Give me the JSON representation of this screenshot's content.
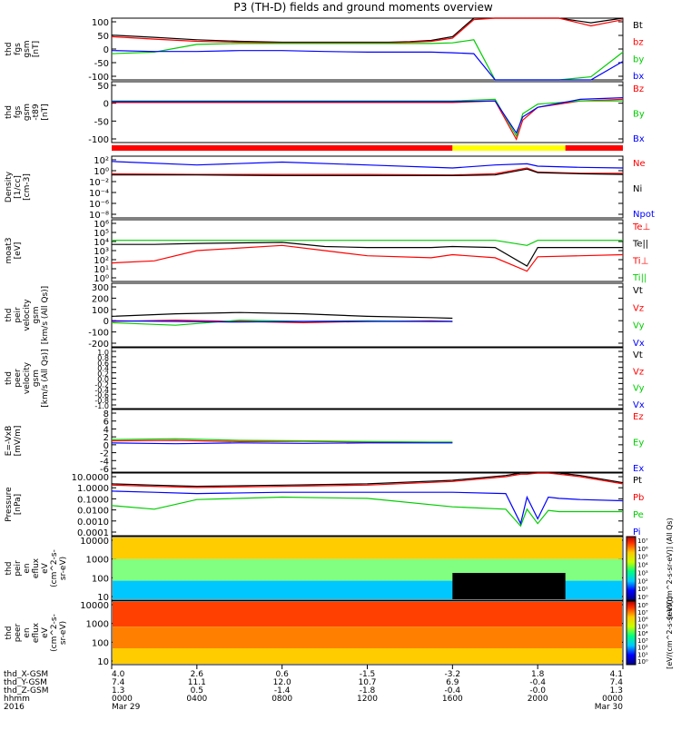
{
  "title": "P3 (TH-D) fields and ground moments overview",
  "colors": {
    "black": "#000000",
    "red": "#ff0000",
    "green": "#00cc00",
    "blue": "#0000ff",
    "yellow": "#ffff00"
  },
  "panels": [
    {
      "id": "fgs",
      "ylabel": [
        "thd",
        "fgs",
        "gsm",
        "[nT]"
      ],
      "yticks": [
        "100",
        "50",
        "0",
        "-50",
        "-100"
      ],
      "legend": [
        {
          "text": "Bt",
          "color": "#000000"
        },
        {
          "text": "bz",
          "color": "#ff0000"
        },
        {
          "text": "by",
          "color": "#00cc00"
        },
        {
          "text": "bx",
          "color": "#0000ff"
        }
      ]
    },
    {
      "id": "fgs_minus_t89",
      "ylabel": [
        "thd",
        "fgs",
        "gsm",
        "-t89",
        "[nT]"
      ],
      "yticks": [
        "50",
        "0",
        "-50",
        "-100"
      ],
      "legend": [
        {
          "text": "Bz",
          "color": "#ff0000"
        },
        {
          "text": "By",
          "color": "#00cc00"
        },
        {
          "text": "Bx",
          "color": "#0000ff"
        }
      ]
    },
    {
      "id": "density",
      "ylabel": [
        "Density",
        "[1/cc]",
        "[cm-3]"
      ],
      "yticks": [
        "10²",
        "10⁰",
        "10⁻²",
        "10⁻⁴",
        "10⁻⁶",
        "10⁻⁸"
      ],
      "legend": [
        {
          "text": "Ne",
          "color": "#ff0000"
        },
        {
          "text": "Ni",
          "color": "#000000"
        },
        {
          "text": "Npot",
          "color": "#0000ff"
        }
      ]
    },
    {
      "id": "temperature",
      "ylabel": [
        "moat3",
        "[eV]"
      ],
      "yticks": [
        "10⁶",
        "10⁵",
        "10⁴",
        "10³",
        "10²",
        "10¹",
        "10⁰"
      ],
      "legend": [
        {
          "text": "Te⊥",
          "color": "#ff0000"
        },
        {
          "text": "Te||",
          "color": "#000000"
        },
        {
          "text": "Ti⊥",
          "color": "#ff0000"
        },
        {
          "text": "Ti||",
          "color": "#00cc00"
        }
      ]
    },
    {
      "id": "peir_velocity",
      "ylabel": [
        "thd",
        "peir",
        "velocity",
        "gsm",
        "[km/s (All Qs)]"
      ],
      "yticks": [
        "300",
        "200",
        "100",
        "0",
        "-100",
        "-200"
      ],
      "legend": [
        {
          "text": "Vt",
          "color": "#000000"
        },
        {
          "text": "Vz",
          "color": "#ff0000"
        },
        {
          "text": "Vy",
          "color": "#00cc00"
        },
        {
          "text": "Vx",
          "color": "#0000ff"
        }
      ]
    },
    {
      "id": "peer_velocity",
      "ylabel": [
        "thd",
        "peer",
        "velocity",
        "gsm",
        "[km/s (All Qs)]"
      ],
      "yticks": [
        "1.0",
        "0.8",
        "0.6",
        "0.4",
        "0.2",
        "0.0",
        "-0.2",
        "-0.4",
        "-0.6",
        "-0.8",
        "-1.0"
      ],
      "legend": [
        {
          "text": "Vt",
          "color": "#000000"
        },
        {
          "text": "Vz",
          "color": "#ff0000"
        },
        {
          "text": "Vy",
          "color": "#00cc00"
        },
        {
          "text": "Vx",
          "color": "#0000ff"
        }
      ]
    },
    {
      "id": "efield",
      "ylabel": [
        "E=-VxB",
        "[mV/m]"
      ],
      "yticks": [
        "8",
        "6",
        "4",
        "2",
        "0",
        "-2",
        "-4",
        "-6"
      ],
      "legend": [
        {
          "text": "Ez",
          "color": "#ff0000"
        },
        {
          "text": "Ey",
          "color": "#00cc00"
        },
        {
          "text": "Ex",
          "color": "#0000ff"
        }
      ]
    },
    {
      "id": "pressure",
      "ylabel": [
        "Pressure",
        "[nPa]"
      ],
      "yticks": [
        "10.0000",
        "1.0000",
        "0.1000",
        "0.0100",
        "0.0010",
        "0.0001"
      ],
      "legend": [
        {
          "text": "Pt",
          "color": "#000000"
        },
        {
          "text": "Pb",
          "color": "#ff0000"
        },
        {
          "text": "Pe",
          "color": "#00cc00"
        },
        {
          "text": "Pi",
          "color": "#0000ff"
        }
      ]
    },
    {
      "id": "peir_spec",
      "ylabel": [
        "thd",
        "peir",
        "en",
        "eflux",
        "eV",
        "(cm^2-s-",
        "sr-eV)"
      ],
      "yticks": [
        "10000",
        "1000",
        "100",
        "10"
      ]
    },
    {
      "id": "peer_spec",
      "ylabel": [
        "thd",
        "peer",
        "en",
        "eflux",
        "eV",
        "(cm^2-s-",
        "sr-eV)"
      ],
      "yticks": [
        "10000",
        "1000",
        "100",
        "10"
      ]
    }
  ],
  "colorbars": [
    {
      "ticks": [
        "10⁷",
        "10⁶",
        "10⁵",
        "10⁴",
        "10³",
        "10²",
        "10¹",
        "10⁰"
      ],
      "label": "[eV/(cm^2-s-sr-eV)] (All Qs)"
    },
    {
      "ticks": [
        "10⁸",
        "10⁷",
        "10⁶",
        "10⁵",
        "10⁴",
        "10³",
        "10²",
        "10¹",
        "10⁰"
      ],
      "label": "[eV/(cm^2-s-sr-eV)]"
    }
  ],
  "bottom_axis": {
    "row_labels": [
      "thd_X-GSM",
      "thd_Y-GSM",
      "thd_Z-GSM",
      "hhmm",
      "2016"
    ],
    "columns": [
      [
        "4.0",
        "7.4",
        "1.3",
        "0000",
        "Mar 29"
      ],
      [
        "2.6",
        "11.1",
        "0.5",
        "0400",
        ""
      ],
      [
        "0.6",
        "12.0",
        "-1.4",
        "0800",
        ""
      ],
      [
        "-1.5",
        "10.7",
        "-1.8",
        "1200",
        ""
      ],
      [
        "-3.2",
        "6.9",
        "-0.4",
        "1600",
        ""
      ],
      [
        "1.8",
        "-0.4",
        "-0.0",
        "2000",
        ""
      ],
      [
        "4.1",
        "7.4",
        "1.3",
        "0000",
        "Mar 30"
      ]
    ]
  },
  "chart_data": [
    {
      "type": "line",
      "panel": "fgs",
      "x_hours": [
        0,
        2,
        4,
        6,
        8,
        10,
        12,
        13,
        14,
        15,
        16,
        17,
        18,
        18.5,
        21,
        22.5,
        24
      ],
      "series": [
        {
          "name": "Bt",
          "values": [
            45,
            38,
            30,
            25,
            22,
            22,
            22,
            22,
            24,
            28,
            40,
            100,
            100,
            100,
            100,
            85,
            100
          ]
        },
        {
          "name": "bz",
          "values": [
            40,
            32,
            25,
            22,
            20,
            20,
            20,
            20,
            22,
            25,
            35,
            95,
            100,
            100,
            100,
            75,
            95
          ]
        },
        {
          "name": "by",
          "values": [
            -15,
            -10,
            15,
            18,
            18,
            18,
            18,
            18,
            18,
            18,
            20,
            30,
            -100,
            -100,
            -100,
            -90,
            -10
          ]
        },
        {
          "name": "bx",
          "values": [
            -5,
            -8,
            -8,
            -5,
            -5,
            -8,
            -10,
            -10,
            -10,
            -10,
            -12,
            -15,
            -100,
            -100,
            -100,
            -100,
            -40
          ]
        }
      ],
      "ylim": [
        -100,
        100
      ]
    },
    {
      "type": "line",
      "panel": "fgs_minus_t89",
      "x_hours": [
        0,
        4,
        8,
        12,
        16,
        18,
        19,
        19.3,
        20,
        22,
        24
      ],
      "series": [
        {
          "name": "Bz",
          "values": [
            -5,
            -5,
            -5,
            -5,
            -5,
            0,
            -120,
            -60,
            -20,
            0,
            5
          ]
        },
        {
          "name": "By",
          "values": [
            0,
            0,
            0,
            0,
            0,
            5,
            -110,
            -40,
            -10,
            0,
            0
          ]
        },
        {
          "name": "Bx",
          "values": [
            -2,
            -2,
            -2,
            -2,
            -2,
            0,
            -100,
            -50,
            -20,
            5,
            10
          ]
        }
      ],
      "ylim": [
        -130,
        60
      ]
    },
    {
      "type": "line",
      "panel": "density",
      "x_hours": [
        0,
        4,
        8,
        12,
        16,
        18,
        19.5,
        20,
        22,
        24
      ],
      "series": [
        {
          "name": "Ne",
          "log10_values": [
            -0.5,
            -0.6,
            -0.6,
            -0.6,
            -0.7,
            -0.5,
            0.5,
            -0.2,
            -0.4,
            -0.4
          ]
        },
        {
          "name": "Ni",
          "log10_values": [
            -0.7,
            -0.7,
            -0.8,
            -0.8,
            -0.8,
            -0.7,
            0.3,
            -0.3,
            -0.5,
            -0.6
          ]
        },
        {
          "name": "Npot",
          "log10_values": [
            1.6,
            1.0,
            1.5,
            1.0,
            0.5,
            1.0,
            1.2,
            0.8,
            0.6,
            0.5
          ]
        }
      ],
      "ylog_range": [
        -8,
        2.5
      ]
    },
    {
      "type": "line",
      "panel": "temperature",
      "x_hours": [
        0,
        2,
        4,
        8,
        10,
        12,
        15,
        16,
        18,
        19.5,
        20,
        22,
        24
      ],
      "series": [
        {
          "name": "Te||",
          "log10_values": [
            3.6,
            3.6,
            3.7,
            3.8,
            3.4,
            3.3,
            3.3,
            3.4,
            3.3,
            1.5,
            3.3,
            3.3,
            3.3
          ]
        },
        {
          "name": "Ti||",
          "log10_values": [
            4.0,
            4.0,
            4.0,
            4.0,
            4.0,
            4.0,
            4.0,
            4.0,
            4.0,
            3.5,
            4.0,
            4.0,
            4.0
          ]
        },
        {
          "name": "Te⊥",
          "log10_values": [
            1.8,
            2.0,
            3.0,
            3.5,
            3.0,
            2.5,
            2.3,
            2.6,
            2.3,
            1.0,
            2.4,
            2.5,
            2.6
          ]
        }
      ],
      "ylog_range": [
        0,
        6
      ]
    },
    {
      "type": "line",
      "panel": "peir_velocity",
      "x_hours": [
        0,
        3,
        6,
        9,
        12,
        15,
        16
      ],
      "series": [
        {
          "name": "Vt",
          "values": [
            40,
            60,
            70,
            60,
            40,
            30,
            25
          ]
        },
        {
          "name": "Vz",
          "values": [
            0,
            10,
            0,
            -10,
            0,
            5,
            0
          ]
        },
        {
          "name": "Vy",
          "values": [
            -10,
            -30,
            10,
            0,
            5,
            0,
            0
          ]
        },
        {
          "name": "Vx",
          "values": [
            5,
            0,
            -5,
            0,
            0,
            0,
            0
          ]
        }
      ],
      "ylim": [
        -200,
        300
      ]
    },
    {
      "type": "line",
      "panel": "efield",
      "x_hours": [
        0,
        3,
        6,
        9,
        12,
        15,
        16
      ],
      "series": [
        {
          "name": "Ez",
          "values": [
            0.5,
            0.6,
            0.3,
            0.4,
            0.2,
            0.1,
            0.1
          ]
        },
        {
          "name": "Ey",
          "values": [
            0.8,
            1.0,
            0.6,
            0.5,
            0.3,
            0.2,
            0.2
          ]
        },
        {
          "name": "Ex",
          "values": [
            0,
            -0.2,
            0,
            -0.1,
            0,
            0,
            0
          ]
        }
      ],
      "ylim": [
        -7,
        8
      ]
    },
    {
      "type": "line",
      "panel": "pressure",
      "x_hours": [
        0,
        2,
        4,
        8,
        12,
        16,
        18.5,
        19.2,
        19.5,
        20,
        20.5,
        21,
        22,
        24
      ],
      "series": [
        {
          "name": "Pt",
          "log10_values": [
            0.3,
            0.2,
            0.1,
            0.2,
            0.3,
            0.6,
            1.0,
            1.2,
            1.2,
            1.3,
            1.3,
            1.2,
            1.0,
            0.4
          ]
        },
        {
          "name": "Pb",
          "log10_values": [
            0.2,
            0.1,
            0.0,
            0.1,
            0.2,
            0.5,
            0.9,
            1.1,
            1.1,
            1.2,
            1.2,
            1.1,
            0.9,
            0.3
          ]
        },
        {
          "name": "Pe",
          "log10_values": [
            -1.5,
            -1.8,
            -1.0,
            -0.8,
            -0.9,
            -1.6,
            -1.8,
            -3.2,
            -1.8,
            -3.0,
            -1.9,
            -2.0,
            -2.0,
            -2.0
          ]
        },
        {
          "name": "Pi",
          "log10_values": [
            -0.3,
            -0.4,
            -0.5,
            -0.4,
            -0.4,
            -0.4,
            -0.5,
            -3.0,
            -0.8,
            -2.6,
            -0.8,
            -0.9,
            -1.0,
            -1.1
          ]
        }
      ],
      "ylog_range": [
        -4,
        1.2
      ]
    }
  ]
}
